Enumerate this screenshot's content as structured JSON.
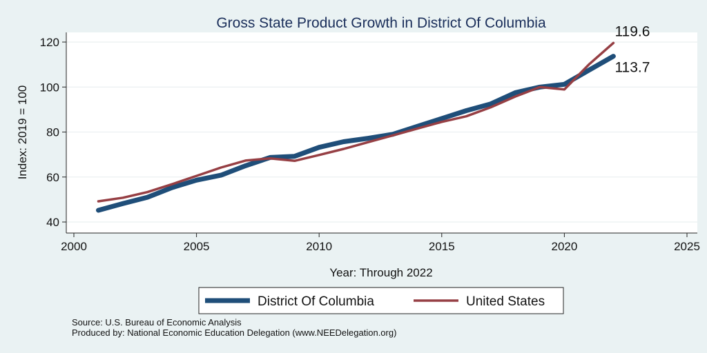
{
  "chart_data": {
    "type": "line",
    "title": "Gross State Product Growth in District Of Columbia",
    "xlabel": "Year: Through 2022",
    "ylabel": "Index: 2019 = 100",
    "xlim": [
      2000,
      2025
    ],
    "ylim": [
      40,
      120
    ],
    "xticks": [
      2000,
      2005,
      2010,
      2015,
      2020,
      2025
    ],
    "yticks": [
      40,
      60,
      80,
      100,
      120
    ],
    "grid": true,
    "legend_position": "bottom",
    "series": [
      {
        "name": "District Of Columbia",
        "color": "#1f4e79",
        "end_label": "113.7",
        "x": [
          2001,
          2002,
          2003,
          2004,
          2005,
          2006,
          2007,
          2008,
          2009,
          2010,
          2011,
          2012,
          2013,
          2014,
          2015,
          2016,
          2017,
          2018,
          2019,
          2020,
          2021,
          2022
        ],
        "y": [
          45.2,
          48.2,
          51.0,
          55.3,
          58.6,
          60.8,
          65.0,
          68.7,
          69.2,
          73.2,
          75.7,
          77.2,
          79.0,
          82.5,
          86.0,
          89.5,
          92.5,
          97.5,
          100.0,
          101.2,
          107.5,
          113.7
        ]
      },
      {
        "name": "United States",
        "color": "#963f44",
        "end_label": "119.6",
        "x": [
          2001,
          2002,
          2003,
          2004,
          2005,
          2006,
          2007,
          2008,
          2009,
          2010,
          2011,
          2012,
          2013,
          2014,
          2015,
          2016,
          2017,
          2018,
          2019,
          2020,
          2021,
          2022
        ],
        "y": [
          49.2,
          50.8,
          53.3,
          56.8,
          60.5,
          64.2,
          67.3,
          68.3,
          67.2,
          69.8,
          72.5,
          75.5,
          78.5,
          81.5,
          84.5,
          87.0,
          91.0,
          95.8,
          100.0,
          98.9,
          110.0,
          119.6
        ]
      }
    ],
    "notes": [
      "Source: U.S. Bureau of Economic Analysis",
      "Produced by: National Economic Education Delegation (www.NEEDelegation.org)"
    ]
  }
}
